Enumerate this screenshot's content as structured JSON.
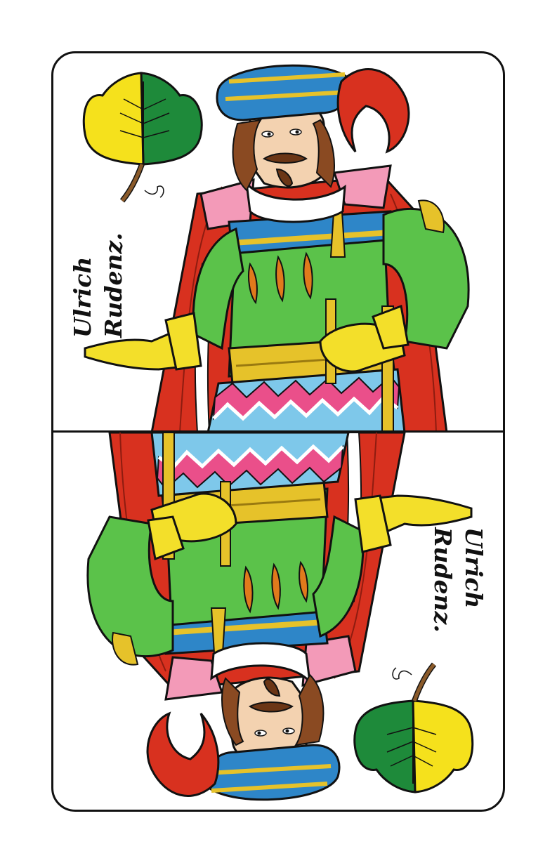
{
  "card": {
    "name_line1": "Ulrich",
    "name_line2": "Rudenz.",
    "suit": "leaves",
    "suit_icon": "leaf-suit-icon",
    "colors": {
      "leaf_yellow": "#f5e11c",
      "leaf_green": "#1e8a3a",
      "hat_blue": "#2e86c8",
      "tunic_green": "#5bc24a",
      "cloak_red": "#d8311f",
      "glove_yellow": "#f3df2a",
      "skin": "#f3d2b0",
      "hair": "#8a4a22",
      "trim_gold": "#e6c22a",
      "zigzag_pink": "#ea4f8a",
      "zigzag_blue": "#7ec8ea"
    }
  }
}
